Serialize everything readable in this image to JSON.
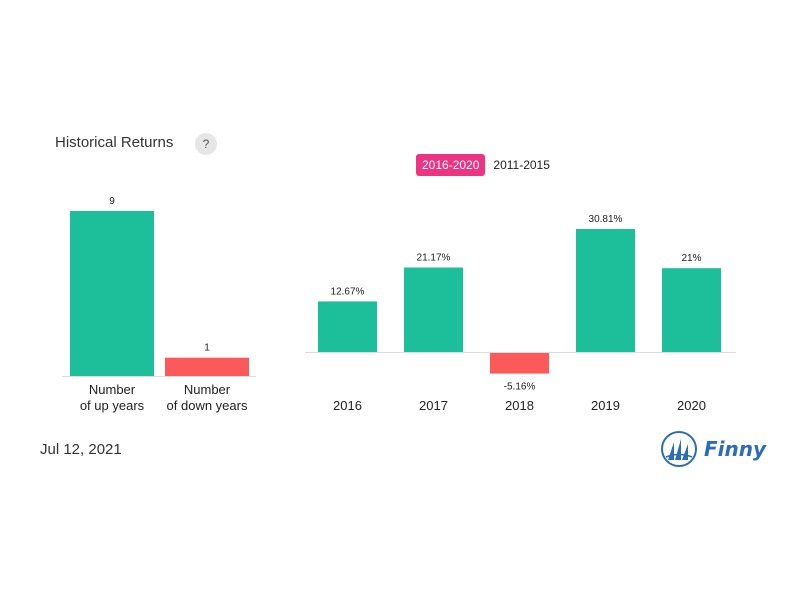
{
  "header": {
    "title": "Historical Returns",
    "help_label": "?"
  },
  "tabs": [
    {
      "label": "2016-2020",
      "active": true
    },
    {
      "label": "2011-2015",
      "active": false
    }
  ],
  "footer": {
    "date": "Jul 12, 2021",
    "logo_text": "Finny"
  },
  "colors": {
    "positive": "#1dbf9b",
    "negative": "#fc5a5a",
    "tab_active": "#ec3482",
    "brand": "#2d6db5"
  },
  "chart_data": [
    {
      "type": "bar",
      "categories": [
        [
          "Number",
          "of up years"
        ],
        [
          "Number",
          "of down years"
        ]
      ],
      "values": [
        9,
        1
      ],
      "value_labels": [
        "9",
        "1"
      ],
      "colors": [
        "#1dbf9b",
        "#fc5a5a"
      ],
      "ylim": [
        0,
        9
      ]
    },
    {
      "type": "bar",
      "categories": [
        "2016",
        "2017",
        "2018",
        "2019",
        "2020"
      ],
      "values": [
        12.67,
        21.17,
        -5.16,
        30.81,
        21
      ],
      "value_labels": [
        "12.67%",
        "21.17%",
        "-5.16%",
        "30.81%",
        "21%"
      ],
      "unit": "%",
      "ylim": [
        -5.16,
        30.81
      ]
    }
  ]
}
